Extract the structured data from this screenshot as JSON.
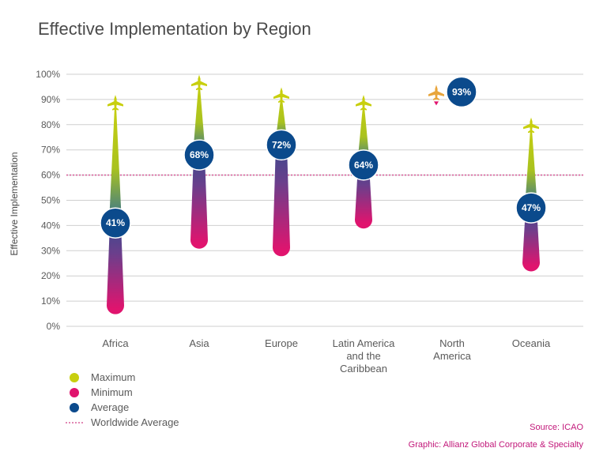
{
  "chart_data": {
    "type": "range-dot",
    "title": "Effective Implementation by Region",
    "ylabel": "Effective Implementation",
    "ylim": [
      0,
      100
    ],
    "y_ticks": [
      "0%",
      "10%",
      "20%",
      "30%",
      "40%",
      "50%",
      "60%",
      "70%",
      "80%",
      "90%",
      "100%"
    ],
    "categories": [
      "Africa",
      "Asia",
      "Europe",
      "Latin America and the Caribbean",
      "North America",
      "Oceania"
    ],
    "category_lines": [
      [
        "Africa"
      ],
      [
        "Asia"
      ],
      [
        "Europe"
      ],
      [
        "Latin America",
        "and the",
        "Caribbean"
      ],
      [
        "North",
        "America"
      ],
      [
        "Oceania"
      ]
    ],
    "series": [
      {
        "name": "Maximum",
        "values": [
          89,
          97,
          92,
          89,
          93,
          80
        ]
      },
      {
        "name": "Minimum",
        "values": [
          7,
          33,
          30,
          41,
          90,
          24
        ]
      },
      {
        "name": "Average",
        "values": [
          41,
          68,
          72,
          64,
          93,
          47
        ]
      }
    ],
    "average_labels": [
      "41%",
      "68%",
      "72%",
      "64%",
      "93%",
      "47%"
    ],
    "reference_line": {
      "name": "Worldwide Average",
      "value": 60
    },
    "grid": true,
    "legend": [
      {
        "label": "Maximum",
        "color": "#c8cf0e"
      },
      {
        "label": "Minimum",
        "color": "#e0146e"
      },
      {
        "label": "Average",
        "color": "#0b4a8c"
      },
      {
        "label": "Worldwide Average",
        "color": "#d8609c"
      }
    ],
    "legend_position": "bottom-left",
    "colors": {
      "max": "#c8cf0e",
      "min": "#e0146e",
      "avg": "#0b4a8c",
      "ref": "#d8609c",
      "north_america_plane": "#e8a53c"
    }
  },
  "credits": {
    "source": "Source: ICAO",
    "graphic": "Graphic: Allianz Global Corporate & Specialty"
  }
}
